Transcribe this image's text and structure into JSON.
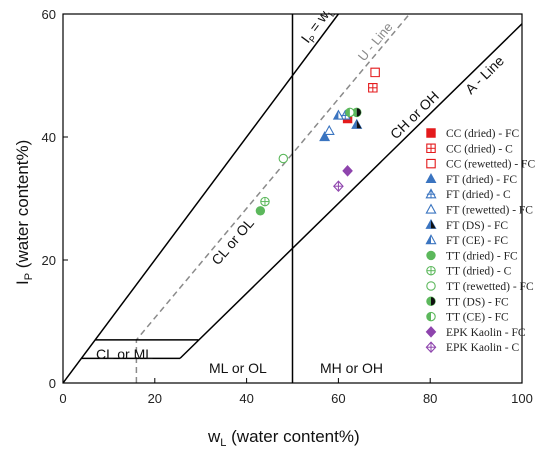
{
  "chart_data": {
    "type": "scatter",
    "title": "",
    "xlabel": {
      "main": "w",
      "sub": "L",
      "rest": " (water content%)"
    },
    "ylabel": {
      "main": "I",
      "sub": "P",
      "rest": " (water content%)"
    },
    "xlim": [
      0,
      100
    ],
    "ylim": [
      0,
      60
    ],
    "xticks": [
      0,
      20,
      40,
      60,
      80,
      100
    ],
    "yticks": [
      0,
      20,
      40,
      60
    ],
    "grid": false,
    "legend_position": "right",
    "reference_lines": [
      {
        "name": "A-line",
        "label": "A - Line",
        "points": [
          [
            25.5,
            4
          ],
          [
            100,
            58.4
          ]
        ],
        "style": "solid"
      },
      {
        "name": "U-line",
        "label": "U - Line",
        "points": [
          [
            16,
            0
          ],
          [
            16,
            7
          ],
          [
            75.5,
            60
          ]
        ],
        "style": "dashed"
      },
      {
        "name": "Ip=wL",
        "label": {
          "main": "I",
          "sub": "P",
          "rest": " = w",
          "sub2": "L"
        },
        "points": [
          [
            0,
            0
          ],
          [
            60,
            60
          ]
        ],
        "style": "solid"
      },
      {
        "name": "wL=50",
        "label": "",
        "points": [
          [
            50,
            0
          ],
          [
            50,
            60
          ]
        ],
        "style": "solid"
      },
      {
        "name": "CL-ML-lower",
        "label": "",
        "points": [
          [
            4,
            4
          ],
          [
            25.5,
            4
          ]
        ],
        "style": "solid"
      },
      {
        "name": "CL-ML-upper",
        "label": "",
        "points": [
          [
            7,
            7
          ],
          [
            29.5,
            7
          ]
        ],
        "style": "solid"
      }
    ],
    "zones": [
      {
        "id": "cl-ml",
        "text": "CL or ML"
      },
      {
        "id": "ml-ol",
        "text": "ML or OL"
      },
      {
        "id": "mh-oh",
        "text": "MH or OH"
      },
      {
        "id": "cl-ol",
        "text": "CL or OL"
      },
      {
        "id": "ch-oh",
        "text": "CH or OH"
      }
    ],
    "series": [
      {
        "name": "CC (dried) - FC",
        "marker": "square",
        "fill": "full",
        "color": "#e41a1c",
        "x": [
          62
        ],
        "y": [
          43
        ]
      },
      {
        "name": "CC (dried) - C",
        "marker": "square",
        "fill": "crossed",
        "color": "#e41a1c",
        "x": [
          67.5
        ],
        "y": [
          48
        ]
      },
      {
        "name": "CC (rewetted) - FC",
        "marker": "square",
        "fill": "open",
        "color": "#e41a1c",
        "x": [
          68
        ],
        "y": [
          50.5
        ]
      },
      {
        "name": "FT (dried) - FC",
        "marker": "triangle",
        "fill": "full",
        "color": "#3a74c0",
        "x": [
          57
        ],
        "y": [
          40
        ]
      },
      {
        "name": "FT (dried) - C",
        "marker": "triangle",
        "fill": "crossed",
        "color": "#3a74c0",
        "x": [
          61.5
        ],
        "y": [
          43.5
        ]
      },
      {
        "name": "FT (rewetted) - FC",
        "marker": "triangle",
        "fill": "open",
        "color": "#3a74c0",
        "x": [
          58
        ],
        "y": [
          41
        ]
      },
      {
        "name": "FT (DS) - FC",
        "marker": "triangle",
        "fill": "half-dark",
        "color": "#3a74c0",
        "x": [
          64
        ],
        "y": [
          42
        ]
      },
      {
        "name": "FT (CE) - FC",
        "marker": "triangle",
        "fill": "half",
        "color": "#3a74c0",
        "x": [
          60
        ],
        "y": [
          43.5
        ]
      },
      {
        "name": "TT (dried) - FC",
        "marker": "circle",
        "fill": "full",
        "color": "#5cb85c",
        "x": [
          43
        ],
        "y": [
          28
        ]
      },
      {
        "name": "TT (dried) - C",
        "marker": "circle",
        "fill": "crossed",
        "color": "#5cb85c",
        "x": [
          44
        ],
        "y": [
          29.5
        ]
      },
      {
        "name": "TT (rewetted) - FC",
        "marker": "circle",
        "fill": "open",
        "color": "#5cb85c",
        "x": [
          48
        ],
        "y": [
          36.5
        ]
      },
      {
        "name": "TT (DS) - FC",
        "marker": "circle",
        "fill": "half-dark",
        "color": "#5cb85c",
        "x": [
          64
        ],
        "y": [
          44
        ]
      },
      {
        "name": "TT (CE) - FC",
        "marker": "circle",
        "fill": "half",
        "color": "#5cb85c",
        "x": [
          62.5
        ],
        "y": [
          44
        ]
      },
      {
        "name": "EPK Kaolin - FC",
        "marker": "diamond",
        "fill": "full",
        "color": "#8e44ad",
        "x": [
          62
        ],
        "y": [
          34.5
        ]
      },
      {
        "name": "EPK Kaolin - C",
        "marker": "diamond",
        "fill": "crossed",
        "color": "#8e44ad",
        "x": [
          60
        ],
        "y": [
          32
        ]
      }
    ]
  }
}
